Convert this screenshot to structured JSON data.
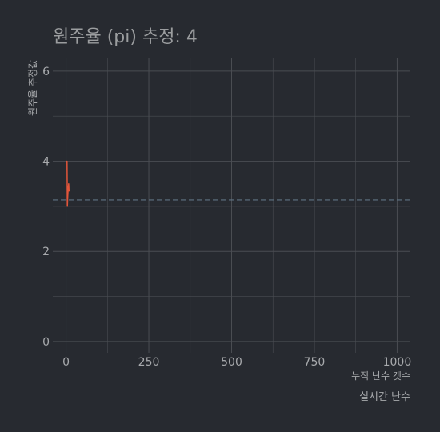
{
  "chart_data": {
    "type": "line",
    "title": "원주율 (pi) 추정: 4",
    "xlabel": "누적 난수 갯수",
    "ylabel": "원주율 추정값",
    "caption": "실시간 난수",
    "xlim": [
      -40,
      1040
    ],
    "ylim": [
      -0.25,
      6.3
    ],
    "x_ticks": [
      0,
      250,
      500,
      750,
      1000
    ],
    "x_tick_labels": [
      "0",
      "250",
      "500",
      "750",
      "1000"
    ],
    "x_minor_ticks": [
      125,
      375,
      625,
      875
    ],
    "y_ticks": [
      0,
      2,
      4,
      6
    ],
    "y_tick_labels": [
      "0",
      "2",
      "4",
      "6"
    ],
    "y_minor_ticks": [
      1,
      3,
      5
    ],
    "grid": true,
    "reference_line": {
      "y": 3.14159,
      "style": "dashed",
      "color": "#5f7384"
    },
    "series": [
      {
        "color": "#e2553a",
        "x": [
          1,
          2,
          3,
          4,
          5,
          6,
          7,
          8,
          9
        ],
        "y": [
          4.0,
          4.0,
          4.0,
          3.0,
          3.2,
          3.33,
          3.43,
          3.5,
          3.33
        ]
      }
    ],
    "colors": {
      "background": "#272a30",
      "grid": "#4a4d52",
      "text": "#a8aaad",
      "title": "#9b9d9f"
    }
  }
}
